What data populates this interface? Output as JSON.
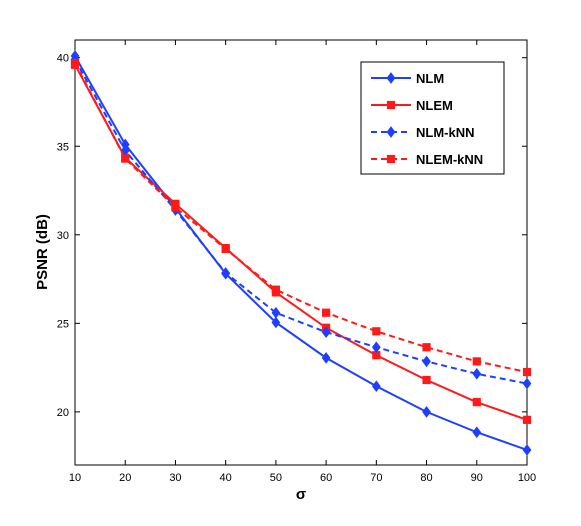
{
  "chart_data": {
    "type": "line",
    "title": "",
    "xlabel": "σ",
    "ylabel": "PSNR  (dB)",
    "xlim": [
      10,
      100
    ],
    "ylim": [
      17,
      41
    ],
    "xticks": [
      10,
      20,
      30,
      40,
      50,
      60,
      70,
      80,
      90,
      100
    ],
    "yticks": [
      20,
      25,
      30,
      35,
      40
    ],
    "grid": false,
    "legend_position": "top-right",
    "x": [
      10,
      20,
      30,
      40,
      50,
      60,
      70,
      80,
      90,
      100
    ],
    "series": [
      {
        "name": "NLM",
        "color": "#1f3fff",
        "line_style": "solid",
        "marker": "diamond",
        "values": [
          40.1,
          35.1,
          31.5,
          27.8,
          25.05,
          23.05,
          21.45,
          20.0,
          18.85,
          17.85
        ]
      },
      {
        "name": "NLEM",
        "color": "#ff1a1a",
        "line_style": "solid",
        "marker": "square",
        "values": [
          39.6,
          34.35,
          31.75,
          29.25,
          26.75,
          24.75,
          23.2,
          21.8,
          20.55,
          19.55
        ]
      },
      {
        "name": "NLM-kNN",
        "color": "#1f3fff",
        "line_style": "dashed",
        "marker": "diamond",
        "values": [
          39.9,
          34.75,
          31.4,
          27.85,
          25.6,
          24.5,
          23.65,
          22.85,
          22.15,
          21.6
        ]
      },
      {
        "name": "NLEM-kNN",
        "color": "#ff1a1a",
        "line_style": "dashed",
        "marker": "square",
        "values": [
          39.7,
          34.3,
          31.55,
          29.2,
          26.9,
          25.6,
          24.55,
          23.65,
          22.85,
          22.25
        ]
      }
    ]
  }
}
